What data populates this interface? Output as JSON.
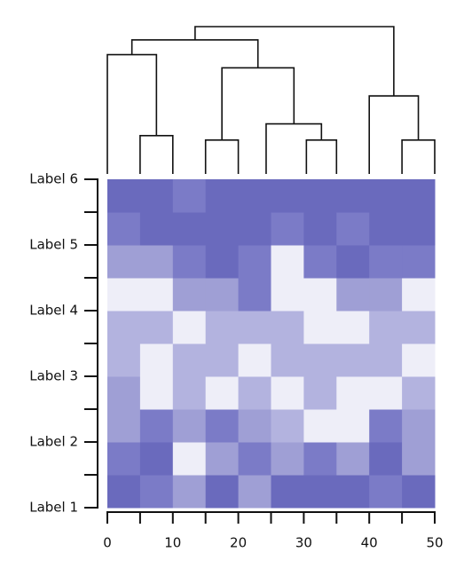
{
  "chart_data": {
    "type": "heatmap",
    "xlim": [
      0,
      50
    ],
    "xticks": [
      0,
      10,
      20,
      30,
      40,
      50
    ],
    "xminor": [
      5,
      15,
      25,
      35,
      45
    ],
    "ylim": [
      0,
      10
    ],
    "yticks": [
      {
        "value": 0,
        "label": "Label 1"
      },
      {
        "value": 2,
        "label": "Label 2"
      },
      {
        "value": 4,
        "label": "Label 3"
      },
      {
        "value": 6,
        "label": "Label 4"
      },
      {
        "value": 8,
        "label": "Label 5"
      },
      {
        "value": 10,
        "label": "Label 6"
      }
    ],
    "yminor": [
      1,
      3,
      5,
      7,
      9
    ],
    "colors": [
      "#eeeef8",
      "#b3b3df",
      "#9f9fd5",
      "#7b7bc7",
      "#6a6abd"
    ],
    "z": [
      [
        4,
        3,
        2,
        4,
        2,
        4,
        4,
        4,
        3,
        4
      ],
      [
        3,
        4,
        0,
        2,
        3,
        2,
        3,
        2,
        4,
        2
      ],
      [
        2,
        3,
        2,
        3,
        2,
        1,
        0,
        0,
        3,
        2
      ],
      [
        2,
        0,
        1,
        0,
        1,
        0,
        1,
        0,
        0,
        1
      ],
      [
        1,
        0,
        1,
        1,
        0,
        1,
        1,
        1,
        1,
        0
      ],
      [
        1,
        1,
        0,
        1,
        1,
        1,
        0,
        0,
        1,
        1
      ],
      [
        0,
        0,
        2,
        2,
        3,
        0,
        0,
        2,
        2,
        0
      ],
      [
        2,
        2,
        3,
        4,
        3,
        0,
        3,
        4,
        3,
        3
      ],
      [
        3,
        4,
        4,
        4,
        4,
        3,
        4,
        3,
        4,
        4
      ],
      [
        4,
        4,
        3,
        4,
        4,
        4,
        4,
        4,
        4,
        4
      ]
    ],
    "dendrogram_hlim": [
      0,
      10
    ],
    "links": [
      [
        5,
        0,
        10,
        0,
        2.6
      ],
      [
        15,
        0,
        20,
        0,
        2.3
      ],
      [
        30.4,
        0,
        35,
        0,
        2.3
      ],
      [
        45,
        0,
        50,
        0,
        2.3
      ],
      [
        24.25,
        0,
        32.7,
        2.3,
        3.4
      ],
      [
        0,
        0,
        7.5,
        2.6,
        8.1
      ],
      [
        17.5,
        2.3,
        28.5,
        3.4,
        7.2
      ],
      [
        40,
        0,
        47.5,
        2.3,
        5.3
      ],
      [
        3.75,
        8.1,
        23,
        7.2,
        9.1
      ],
      [
        13.4,
        9.1,
        43.75,
        5.3,
        10
      ]
    ]
  }
}
